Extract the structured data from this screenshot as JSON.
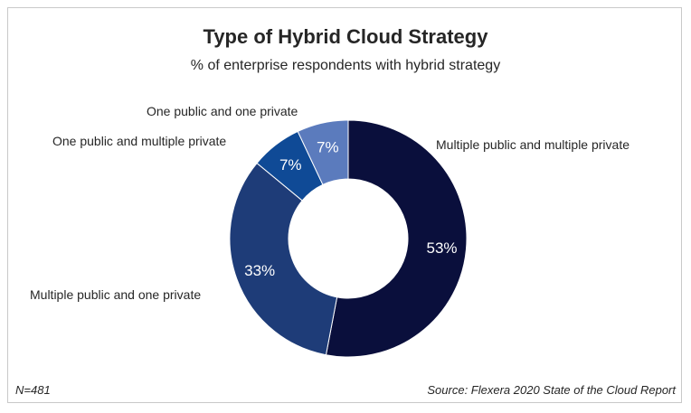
{
  "chart_data": {
    "type": "pie",
    "title": "Type of Hybrid Cloud Strategy",
    "subtitle": "% of enterprise respondents with hybrid strategy",
    "slices": [
      {
        "label": "Multiple public and multiple private",
        "value": 53,
        "value_label": "53%",
        "color": "#0a0f3c"
      },
      {
        "label": "Multiple public and one private",
        "value": 33,
        "value_label": "33%",
        "color": "#1e3c78"
      },
      {
        "label": "One public and multiple private",
        "value": 7,
        "value_label": "7%",
        "color": "#0f4a96"
      },
      {
        "label": "One public and one private",
        "value": 7,
        "value_label": "7%",
        "color": "#5b7bbd"
      }
    ],
    "donut": true,
    "legend": "none (direct labels)"
  },
  "footer": {
    "sample": "N=481",
    "source": "Source: Flexera 2020 State of the Cloud Report"
  }
}
